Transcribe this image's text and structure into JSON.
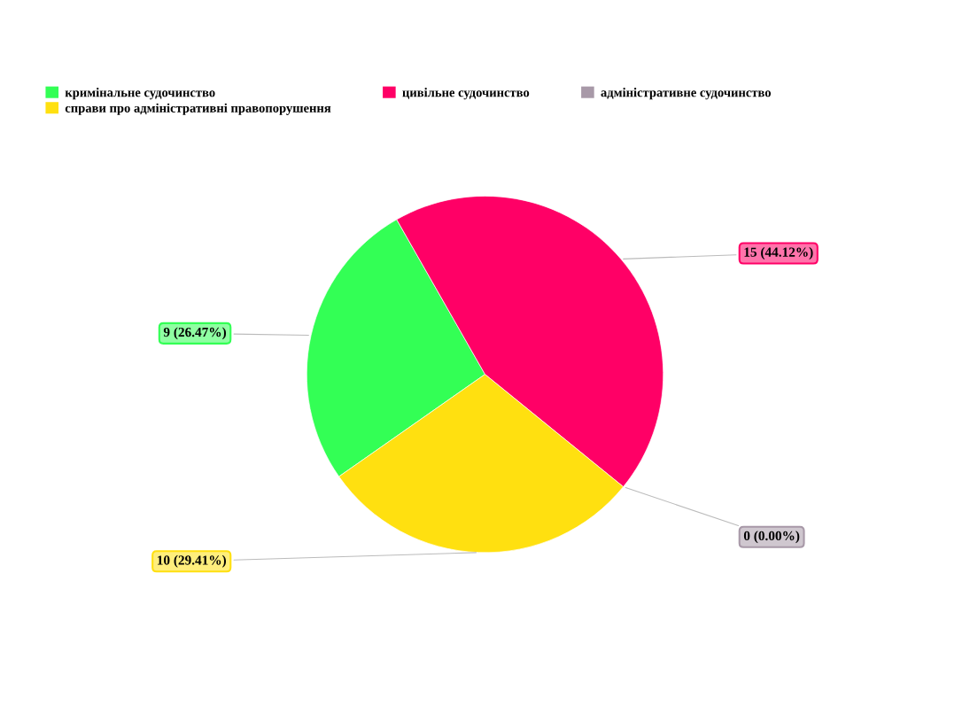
{
  "chart_data": {
    "type": "pie",
    "categories": [
      "кримінальне судочинство",
      "цивільне судочинство",
      "адміністративне судочинство",
      "справи про адміністративні правопорушення"
    ],
    "values": [
      9,
      15,
      0,
      10
    ],
    "colors": [
      "#33ff55",
      "#ff0066",
      "#a899a8",
      "#ffe010"
    ],
    "value_labels": [
      "9 (26.47%)",
      "15 (44.12%)",
      "0 (0.00%)",
      "10 (29.41%)"
    ],
    "legend": "top"
  }
}
